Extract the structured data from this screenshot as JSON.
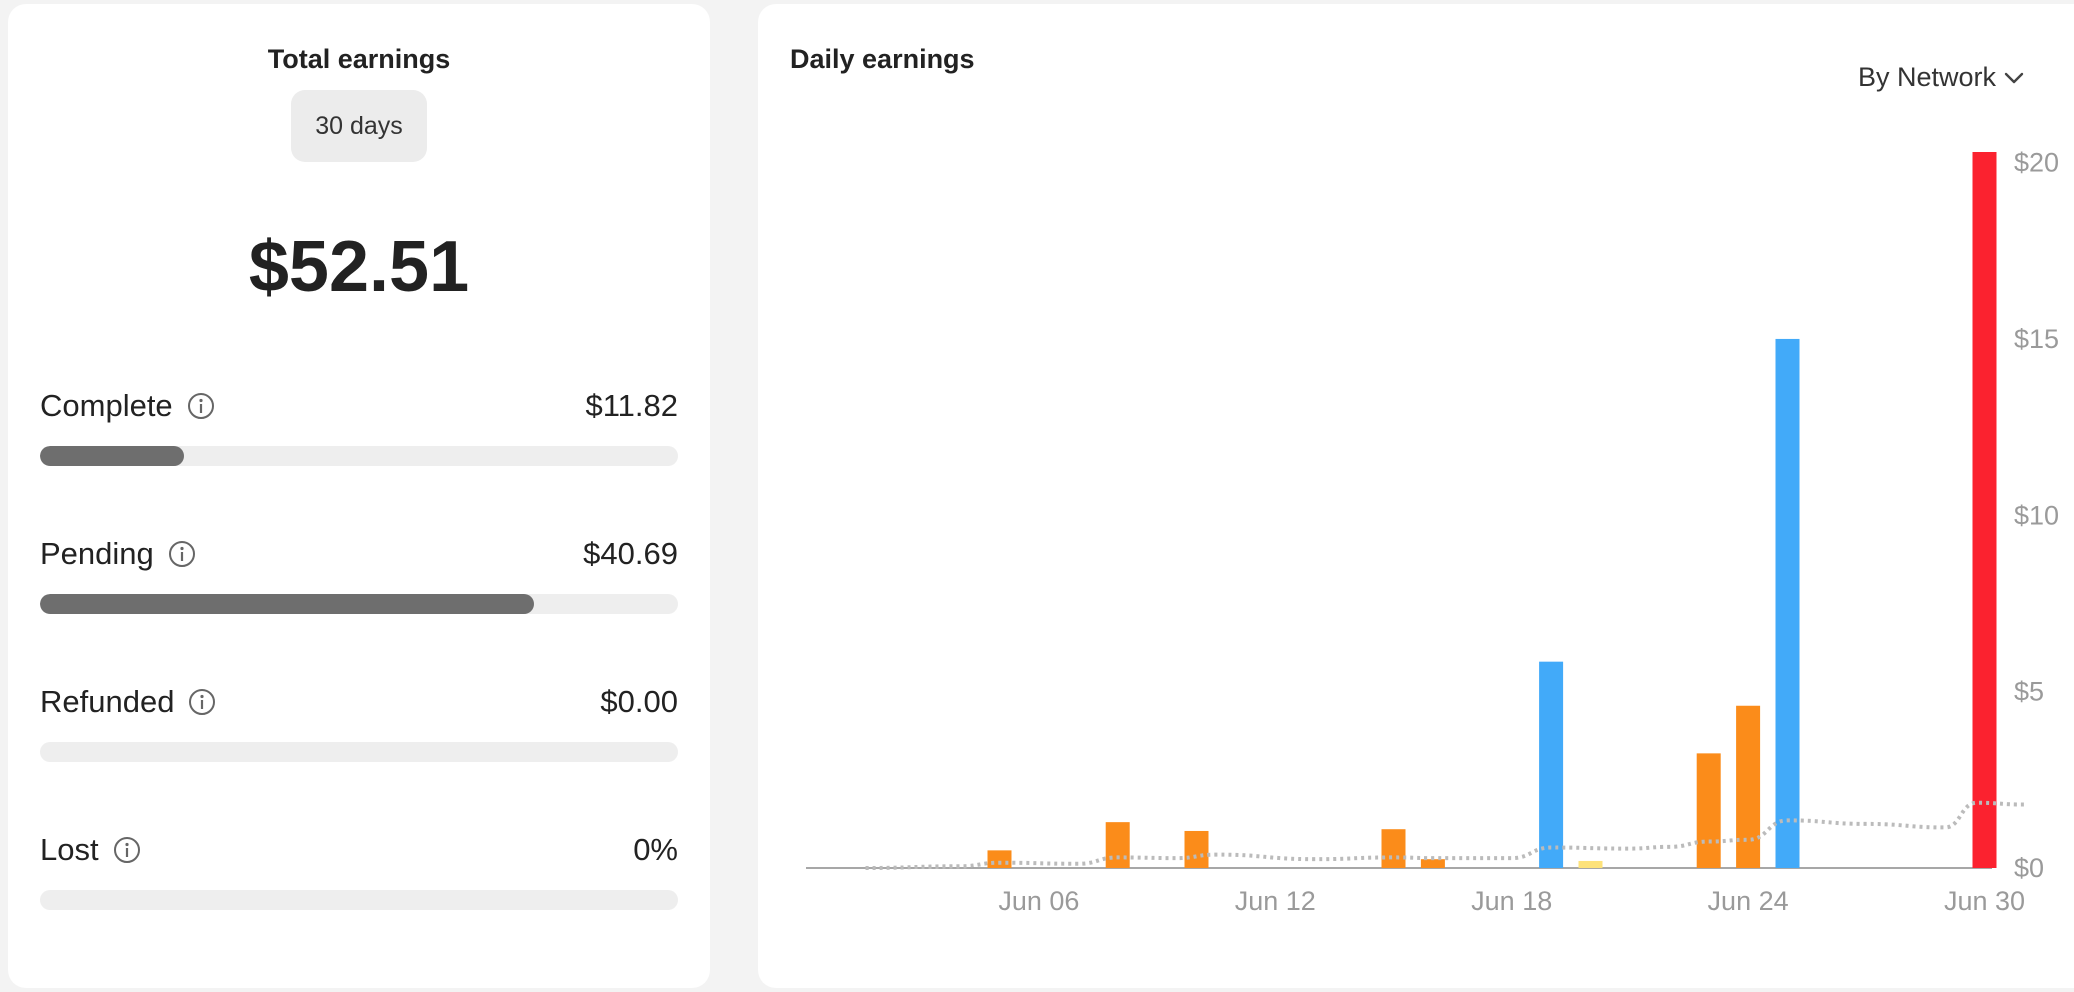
{
  "summary": {
    "title": "Total earnings",
    "range_label": "30 days",
    "total": "$52.51",
    "metrics": [
      {
        "label": "Complete",
        "value": "$11.82",
        "fraction": 0.225
      },
      {
        "label": "Pending",
        "value": "$40.69",
        "fraction": 0.775
      },
      {
        "label": "Refunded",
        "value": "$0.00",
        "fraction": 0
      },
      {
        "label": "Lost",
        "value": "0%",
        "fraction": 0
      }
    ],
    "bar_color": "#6e6e6e",
    "track_color": "#eeeeee"
  },
  "daily": {
    "title": "Daily earnings",
    "dropdown_label": "By Network"
  },
  "icons": {
    "info": "info-icon",
    "dropdown": "chevron-down-icon"
  },
  "chart_data": {
    "type": "bar",
    "title": "Daily earnings",
    "x_tick_labels": [
      "Jun 06",
      "Jun 12",
      "Jun 18",
      "Jun 24",
      "Jun 30"
    ],
    "x_tick_days": [
      6,
      12,
      18,
      24,
      30
    ],
    "y_tick_labels": [
      "$0",
      "$5",
      "$10",
      "$15",
      "$20"
    ],
    "y_tick_values": [
      0,
      5,
      10,
      15,
      20
    ],
    "ylim": [
      0,
      20.3
    ],
    "y_axis_side": "right",
    "grid": false,
    "bars": [
      {
        "day": 5,
        "value": 0.5,
        "color": "#fb8c1a"
      },
      {
        "day": 8,
        "value": 1.3,
        "color": "#fb8c1a"
      },
      {
        "day": 10,
        "value": 1.05,
        "color": "#fb8c1a"
      },
      {
        "day": 15,
        "value": 1.1,
        "color": "#fb8c1a"
      },
      {
        "day": 16,
        "value": 0.25,
        "color": "#fb8c1a"
      },
      {
        "day": 19,
        "value": 5.85,
        "color": "#42aaf9"
      },
      {
        "day": 20,
        "value": 0.2,
        "color": "#fde27a"
      },
      {
        "day": 23,
        "value": 3.25,
        "color": "#fb8c1a"
      },
      {
        "day": 24,
        "value": 4.6,
        "color": "#fb8c1a"
      },
      {
        "day": 25,
        "value": 15.0,
        "color": "#42aaf9"
      },
      {
        "day": 30,
        "value": 20.3,
        "color": "#fb222f"
      }
    ],
    "trend_line": {
      "style": "dotted",
      "color": "#bbbbbb",
      "points": [
        {
          "day": 1.6,
          "value": 0.0
        },
        {
          "day": 4.0,
          "value": 0.05
        },
        {
          "day": 5.0,
          "value": 0.15
        },
        {
          "day": 7.0,
          "value": 0.12
        },
        {
          "day": 8.0,
          "value": 0.3
        },
        {
          "day": 9.5,
          "value": 0.28
        },
        {
          "day": 10.5,
          "value": 0.38
        },
        {
          "day": 13.0,
          "value": 0.25
        },
        {
          "day": 15.0,
          "value": 0.3
        },
        {
          "day": 16.0,
          "value": 0.28
        },
        {
          "day": 18.0,
          "value": 0.28
        },
        {
          "day": 19.0,
          "value": 0.58
        },
        {
          "day": 21.0,
          "value": 0.55
        },
        {
          "day": 22.0,
          "value": 0.6
        },
        {
          "day": 23.0,
          "value": 0.75
        },
        {
          "day": 24.0,
          "value": 0.8
        },
        {
          "day": 25.0,
          "value": 1.35
        },
        {
          "day": 27.0,
          "value": 1.25
        },
        {
          "day": 29.0,
          "value": 1.15
        },
        {
          "day": 29.8,
          "value": 1.85
        },
        {
          "day": 31.0,
          "value": 1.8
        }
      ]
    }
  }
}
